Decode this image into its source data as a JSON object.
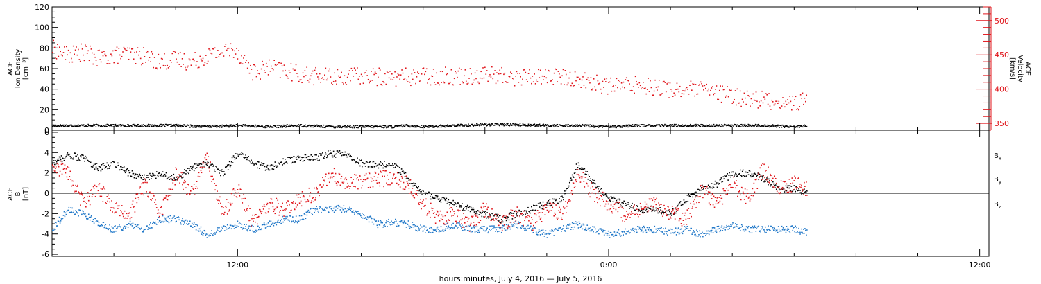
{
  "chart_data": [
    {
      "type": "scatter",
      "title": "",
      "ylabel_lines": [
        "ACE",
        "Ion Density",
        "[cm⁻³]"
      ],
      "y2label_lines": [
        "ACE",
        "Velocity",
        "[km/s]"
      ],
      "ylim": [
        0,
        120
      ],
      "y_ticks": [
        0,
        20,
        40,
        60,
        80,
        100,
        120
      ],
      "y2lim": [
        340,
        520
      ],
      "y2_ticks": [
        350,
        400,
        450,
        500
      ],
      "colors": {
        "density": "#000000",
        "velocity": "#e0151b"
      },
      "series": [
        {
          "name": "Ion Density",
          "axis": "left",
          "color": "#000000",
          "x": [
            6.0,
            7.0,
            8.0,
            9.0,
            10.0,
            11.0,
            12.0,
            13.0,
            14.0,
            15.0,
            16.0,
            17.0,
            17.5,
            18.0,
            19.0,
            20.0,
            21.0,
            22.0,
            23.0,
            24.0,
            25.0,
            26.0,
            27.0,
            28.0,
            29.0,
            30.0,
            30.4
          ],
          "y": [
            5,
            5,
            5,
            5,
            5,
            4,
            5,
            4,
            5,
            4,
            4,
            4,
            5,
            4,
            5,
            6,
            6,
            5,
            5,
            4,
            5,
            5,
            5,
            5,
            5,
            4,
            5
          ]
        },
        {
          "name": "Velocity",
          "axis": "right",
          "color": "#e0151b",
          "x": [
            6.0,
            6.5,
            7.0,
            7.5,
            8.0,
            8.5,
            9.0,
            9.5,
            10.0,
            10.5,
            11.0,
            11.5,
            11.9,
            12.5,
            13.0,
            13.5,
            14.0,
            15.0,
            16.0,
            17.0,
            18.0,
            19.0,
            20.0,
            21.0,
            22.0,
            23.0,
            24.0,
            25.0,
            26.0,
            27.0,
            28.0,
            29.0,
            30.0,
            30.4
          ],
          "y": [
            460,
            450,
            455,
            445,
            450,
            452,
            448,
            440,
            445,
            440,
            450,
            455,
            460,
            425,
            432,
            428,
            422,
            418,
            420,
            418,
            420,
            420,
            422,
            418,
            420,
            415,
            405,
            408,
            400,
            400,
            390,
            385,
            380,
            385
          ]
        }
      ]
    },
    {
      "type": "scatter",
      "title": "",
      "ylabel_lines": [
        "ACE",
        "B",
        "[nT]"
      ],
      "ylim": [
        -6.2,
        6.2
      ],
      "y_ticks": [
        -6,
        -4,
        -2,
        0,
        2,
        4,
        6
      ],
      "zero_line": true,
      "legend_position": "right",
      "series": [
        {
          "name": "Bx",
          "label_main": "B",
          "label_sub": "x",
          "color": "#000000",
          "x": [
            6.0,
            6.5,
            7.0,
            7.5,
            8.0,
            8.5,
            9.0,
            9.5,
            10.0,
            10.5,
            11.0,
            11.5,
            12.0,
            12.5,
            13.0,
            13.5,
            14.0,
            14.5,
            15.0,
            15.5,
            16.0,
            16.5,
            17.0,
            17.5,
            18.0,
            18.5,
            19.0,
            19.5,
            20.0,
            20.5,
            21.0,
            21.5,
            22.0,
            22.5,
            23.0,
            23.5,
            24.0,
            24.5,
            25.0,
            25.5,
            26.0,
            26.5,
            27.0,
            27.5,
            28.0,
            28.5,
            29.0,
            29.5,
            30.0,
            30.4
          ],
          "y": [
            3.0,
            3.8,
            3.5,
            2.5,
            3.0,
            2.0,
            1.5,
            2.0,
            1.5,
            2.5,
            3.0,
            2.0,
            4.0,
            3.0,
            2.5,
            3.2,
            3.5,
            3.5,
            4.0,
            3.8,
            3.0,
            2.8,
            3.0,
            1.5,
            0.0,
            -0.5,
            -1.0,
            -1.5,
            -2.0,
            -2.5,
            -2.0,
            -1.5,
            -1.0,
            -0.5,
            3.0,
            1.0,
            -0.5,
            -1.0,
            -1.5,
            -1.5,
            -2.0,
            -0.5,
            0.5,
            1.0,
            2.0,
            2.0,
            1.5,
            0.5,
            0.5,
            0.2
          ]
        },
        {
          "name": "By",
          "label_main": "B",
          "label_sub": "y",
          "color": "#1f77c8",
          "x": [
            6.0,
            6.5,
            7.0,
            7.5,
            8.0,
            8.5,
            9.0,
            9.5,
            10.0,
            10.5,
            11.0,
            11.5,
            12.0,
            12.5,
            13.0,
            13.5,
            14.0,
            14.5,
            15.0,
            15.5,
            16.0,
            16.5,
            17.0,
            17.5,
            18.0,
            18.5,
            19.0,
            19.5,
            20.0,
            20.5,
            21.0,
            21.5,
            22.0,
            22.5,
            23.0,
            23.5,
            24.0,
            24.5,
            25.0,
            25.5,
            26.0,
            26.5,
            27.0,
            27.5,
            28.0,
            28.5,
            29.0,
            29.5,
            30.0,
            30.4
          ],
          "y": [
            -3.5,
            -1.5,
            -2.0,
            -3.0,
            -3.5,
            -3.0,
            -3.5,
            -2.5,
            -2.5,
            -3.0,
            -4.0,
            -3.5,
            -3.0,
            -3.5,
            -3.0,
            -2.5,
            -2.5,
            -1.5,
            -1.5,
            -1.5,
            -2.0,
            -3.0,
            -2.8,
            -3.0,
            -3.5,
            -3.5,
            -3.0,
            -3.5,
            -3.5,
            -3.5,
            -3.0,
            -3.5,
            -4.0,
            -3.5,
            -3.0,
            -3.5,
            -4.0,
            -3.8,
            -3.5,
            -3.5,
            -3.8,
            -3.5,
            -4.0,
            -3.5,
            -3.2,
            -3.5,
            -3.5,
            -3.5,
            -3.5,
            -3.8
          ]
        },
        {
          "name": "Bz",
          "label_main": "B",
          "label_sub": "z",
          "color": "#e0151b",
          "x": [
            6.0,
            6.5,
            7.0,
            7.5,
            8.0,
            8.5,
            9.0,
            9.5,
            10.0,
            10.5,
            11.0,
            11.5,
            12.0,
            12.5,
            13.0,
            13.5,
            14.0,
            14.5,
            15.0,
            15.5,
            16.0,
            16.5,
            17.0,
            17.5,
            18.0,
            18.5,
            19.0,
            19.5,
            20.0,
            20.5,
            21.0,
            21.5,
            22.0,
            22.5,
            23.0,
            23.5,
            24.0,
            24.5,
            25.0,
            25.5,
            26.0,
            26.5,
            27.0,
            27.5,
            28.0,
            28.5,
            29.0,
            29.5,
            30.0,
            30.4
          ],
          "y": [
            3.0,
            2.0,
            -1.0,
            0.5,
            -1.5,
            -2.0,
            1.0,
            -2.0,
            2.0,
            0.0,
            3.5,
            -2.0,
            0.5,
            -3.0,
            -1.0,
            -1.5,
            -0.5,
            0.0,
            2.0,
            1.0,
            1.2,
            1.5,
            1.5,
            1.0,
            -1.0,
            -2.5,
            -2.0,
            -3.0,
            -1.5,
            -3.0,
            -2.0,
            -3.0,
            -1.5,
            -2.0,
            2.0,
            0.0,
            -1.0,
            -2.0,
            -1.5,
            -1.0,
            -2.0,
            -2.5,
            0.5,
            -1.0,
            1.0,
            -0.5,
            2.5,
            0.5,
            1.0,
            0.5
          ]
        }
      ]
    }
  ],
  "x_axis": {
    "min_hours": 6.0,
    "max_hours": 36.3,
    "ticks": [
      {
        "hours": 12,
        "label": "12:00"
      },
      {
        "hours": 24,
        "label": "0:00"
      },
      {
        "hours": 36,
        "label": "12:00"
      }
    ],
    "title": "hours:minutes, July  4, 2016 — July  5, 2016"
  }
}
